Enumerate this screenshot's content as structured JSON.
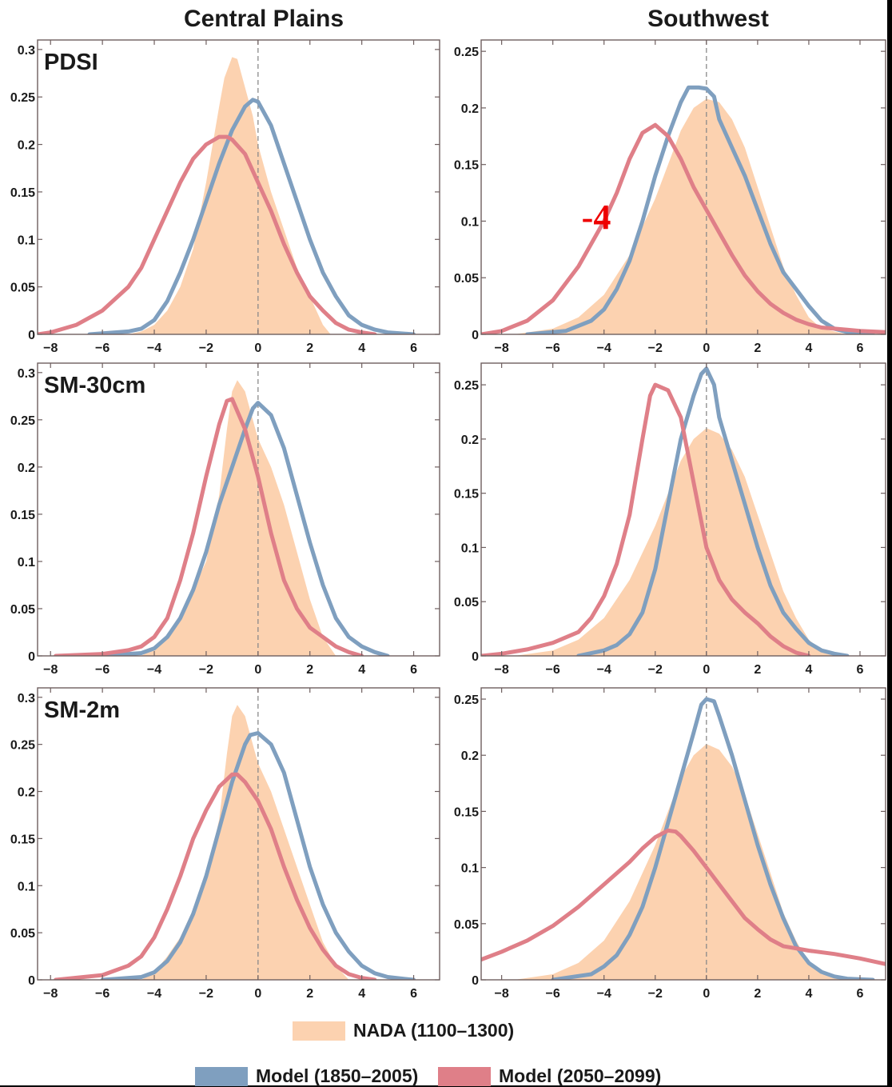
{
  "figure": {
    "column_titles": [
      "Central Plains",
      "Southwest"
    ],
    "row_labels": [
      "PDSI",
      "SM-30cm",
      "SM-2m"
    ],
    "overlay_text": "-4",
    "colors": {
      "nada_fill": "#fcd2b0",
      "model_hist": "#7f9fbf",
      "model_future": "#df7f88",
      "overlay": "#ee0000",
      "axis": "#6e5f5f",
      "zero_line": "#8a8a8a"
    },
    "legend": {
      "nada": "NADA (1100–1300)",
      "hist": "Model (1850–2005)",
      "future": "Model (2050–2099)"
    }
  },
  "chart_data": [
    {
      "type": "area",
      "panel": "Central Plains",
      "row_label": "PDSI",
      "xlim": [
        -8.5,
        7
      ],
      "ylim": [
        0,
        0.31
      ],
      "xticks": [
        -8,
        -6,
        -4,
        -2,
        0,
        2,
        4,
        6
      ],
      "yticks": [
        0,
        0.05,
        0.1,
        0.15,
        0.2,
        0.25,
        0.3
      ],
      "ytick_labels": [
        "0",
        "0.05",
        "0.1",
        "0.15",
        "0.2",
        "0.25",
        "0.3"
      ],
      "nada": {
        "x": [
          -5.0,
          -4.5,
          -4,
          -3.5,
          -3,
          -2.5,
          -2,
          -1.5,
          -1.3,
          -1,
          -0.8,
          -0.5,
          -0.2,
          0,
          0.5,
          1,
          1.5,
          2,
          2.5,
          2.8
        ],
        "y": [
          0,
          0.003,
          0.01,
          0.025,
          0.05,
          0.09,
          0.16,
          0.24,
          0.27,
          0.292,
          0.29,
          0.26,
          0.23,
          0.2,
          0.15,
          0.11,
          0.07,
          0.04,
          0.01,
          0
        ]
      },
      "series": [
        {
          "name": "Model (1850–2005)",
          "x": [
            -6.5,
            -5,
            -4.5,
            -4,
            -3.5,
            -3,
            -2.5,
            -2,
            -1.5,
            -1,
            -0.5,
            -0.2,
            0,
            0.5,
            1,
            1.5,
            2,
            2.5,
            3,
            3.5,
            4,
            4.5,
            5,
            6
          ],
          "y": [
            0,
            0.003,
            0.006,
            0.015,
            0.035,
            0.065,
            0.1,
            0.14,
            0.18,
            0.215,
            0.24,
            0.247,
            0.245,
            0.22,
            0.18,
            0.14,
            0.1,
            0.065,
            0.04,
            0.02,
            0.01,
            0.005,
            0.002,
            0
          ]
        },
        {
          "name": "Model (2050–2099)",
          "x": [
            -8.5,
            -8,
            -7,
            -6,
            -5,
            -4.5,
            -4,
            -3.5,
            -3,
            -2.5,
            -2,
            -1.5,
            -1.2,
            -1,
            -0.5,
            0,
            0.5,
            1,
            1.5,
            2,
            2.5,
            3,
            3.5,
            4,
            4.5
          ],
          "y": [
            0,
            0.002,
            0.01,
            0.025,
            0.05,
            0.07,
            0.1,
            0.13,
            0.16,
            0.185,
            0.2,
            0.208,
            0.208,
            0.205,
            0.19,
            0.16,
            0.13,
            0.095,
            0.065,
            0.04,
            0.025,
            0.012,
            0.005,
            0.002,
            0
          ]
        }
      ]
    },
    {
      "type": "area",
      "panel": "Southwest",
      "row_label": "",
      "xlim": [
        -8.8,
        7
      ],
      "ylim": [
        0,
        0.26
      ],
      "xticks": [
        -8,
        -6,
        -4,
        -2,
        0,
        2,
        4,
        6
      ],
      "yticks": [
        0,
        0.05,
        0.1,
        0.15,
        0.2,
        0.25
      ],
      "ytick_labels": [
        "0",
        "0.05",
        "0.1",
        "0.15",
        "0.2",
        "0.25"
      ],
      "nada": {
        "x": [
          -7.5,
          -6,
          -5,
          -4,
          -3,
          -2,
          -1.5,
          -1,
          -0.5,
          0,
          0.5,
          1,
          1.5,
          2,
          2.5,
          3,
          3.5,
          4,
          4.5,
          5.5
        ],
        "y": [
          0,
          0.005,
          0.015,
          0.035,
          0.07,
          0.12,
          0.15,
          0.18,
          0.2,
          0.208,
          0.205,
          0.19,
          0.165,
          0.13,
          0.095,
          0.06,
          0.035,
          0.015,
          0.005,
          0
        ]
      },
      "series": [
        {
          "name": "Model (1850–2005)",
          "x": [
            -7,
            -5.5,
            -4.5,
            -4,
            -3.5,
            -3,
            -2.5,
            -2,
            -1.5,
            -1,
            -0.7,
            -0.3,
            0,
            0.3,
            0.5,
            1,
            1.5,
            2,
            2.5,
            3,
            3.5,
            4,
            4.5,
            5,
            5.5,
            6.5
          ],
          "y": [
            0,
            0.003,
            0.012,
            0.022,
            0.04,
            0.065,
            0.1,
            0.14,
            0.175,
            0.205,
            0.218,
            0.218,
            0.217,
            0.21,
            0.19,
            0.165,
            0.14,
            0.11,
            0.08,
            0.055,
            0.04,
            0.025,
            0.012,
            0.005,
            0.002,
            0
          ]
        },
        {
          "name": "Model (2050–2099)",
          "x": [
            -8.8,
            -8,
            -7,
            -6,
            -5,
            -4,
            -3.5,
            -3,
            -2.5,
            -2,
            -1.5,
            -1,
            -0.5,
            0,
            0.5,
            1,
            1.5,
            2,
            2.5,
            3,
            3.5,
            4,
            4.5,
            5,
            5.5,
            6,
            7
          ],
          "y": [
            0,
            0.003,
            0.012,
            0.03,
            0.06,
            0.1,
            0.125,
            0.155,
            0.178,
            0.185,
            0.175,
            0.155,
            0.13,
            0.11,
            0.09,
            0.07,
            0.052,
            0.038,
            0.027,
            0.019,
            0.013,
            0.009,
            0.006,
            0.005,
            0.004,
            0.003,
            0.002
          ]
        }
      ]
    },
    {
      "type": "area",
      "panel": "Central Plains",
      "row_label": "SM-30cm",
      "xlim": [
        -8.5,
        7
      ],
      "ylim": [
        0,
        0.31
      ],
      "xticks": [
        -8,
        -6,
        -4,
        -2,
        0,
        2,
        4,
        6
      ],
      "yticks": [
        0,
        0.05,
        0.1,
        0.15,
        0.2,
        0.25,
        0.3
      ],
      "ytick_labels": [
        "0",
        "0.05",
        "0.1",
        "0.15",
        "0.2",
        "0.25",
        "0.3"
      ],
      "nada": {
        "x": [
          -4.5,
          -4,
          -3.5,
          -3,
          -2.5,
          -2,
          -1.5,
          -1.2,
          -1,
          -0.8,
          -0.5,
          -0.2,
          0,
          0.5,
          1,
          1.5,
          2,
          2.5,
          3
        ],
        "y": [
          0,
          0.008,
          0.02,
          0.04,
          0.07,
          0.1,
          0.17,
          0.24,
          0.28,
          0.292,
          0.28,
          0.25,
          0.23,
          0.2,
          0.16,
          0.11,
          0.06,
          0.02,
          0
        ]
      },
      "series": [
        {
          "name": "Model (1850–2005)",
          "x": [
            -6,
            -4.5,
            -4,
            -3.5,
            -3,
            -2.5,
            -2,
            -1.5,
            -1,
            -0.5,
            -0.2,
            0,
            0.5,
            1,
            1.5,
            2,
            2.5,
            3,
            3.5,
            4,
            4.5,
            5
          ],
          "y": [
            0,
            0.003,
            0.008,
            0.02,
            0.04,
            0.07,
            0.11,
            0.16,
            0.2,
            0.24,
            0.262,
            0.268,
            0.255,
            0.22,
            0.17,
            0.12,
            0.075,
            0.04,
            0.02,
            0.01,
            0.004,
            0
          ]
        },
        {
          "name": "Model (2050–2099)",
          "x": [
            -7.8,
            -6,
            -5,
            -4.5,
            -4,
            -3.5,
            -3,
            -2.5,
            -2,
            -1.5,
            -1.2,
            -1,
            -0.5,
            0,
            0.5,
            1,
            1.5,
            2,
            2.5,
            3,
            3.5,
            4
          ],
          "y": [
            0,
            0.002,
            0.006,
            0.01,
            0.02,
            0.04,
            0.08,
            0.13,
            0.19,
            0.245,
            0.27,
            0.272,
            0.24,
            0.19,
            0.13,
            0.08,
            0.05,
            0.03,
            0.02,
            0.01,
            0.004,
            0
          ]
        }
      ]
    },
    {
      "type": "area",
      "panel": "Southwest",
      "row_label": "",
      "xlim": [
        -8.8,
        7
      ],
      "ylim": [
        0,
        0.27
      ],
      "xticks": [
        -8,
        -6,
        -4,
        -2,
        0,
        2,
        4,
        6
      ],
      "yticks": [
        0,
        0.05,
        0.1,
        0.15,
        0.2,
        0.25
      ],
      "ytick_labels": [
        "0",
        "0.05",
        "0.1",
        "0.15",
        "0.2",
        "0.25"
      ],
      "nada": {
        "x": [
          -7.5,
          -6,
          -5,
          -4,
          -3,
          -2,
          -1.5,
          -1,
          -0.5,
          0,
          0.5,
          1,
          1.5,
          2,
          2.5,
          3,
          3.5,
          4,
          4.5,
          5.5
        ],
        "y": [
          0,
          0.005,
          0.015,
          0.035,
          0.07,
          0.12,
          0.15,
          0.18,
          0.2,
          0.21,
          0.205,
          0.19,
          0.165,
          0.13,
          0.095,
          0.06,
          0.035,
          0.015,
          0.005,
          0
        ]
      },
      "series": [
        {
          "name": "Model (1850–2005)",
          "x": [
            -5,
            -4,
            -3.5,
            -3,
            -2.5,
            -2,
            -1.5,
            -1,
            -0.5,
            -0.2,
            0,
            0.3,
            0.5,
            1,
            1.5,
            2,
            2.5,
            3,
            3.5,
            4,
            4.5,
            5,
            5.5
          ],
          "y": [
            0,
            0.005,
            0.01,
            0.02,
            0.04,
            0.08,
            0.14,
            0.2,
            0.24,
            0.26,
            0.265,
            0.25,
            0.22,
            0.18,
            0.14,
            0.1,
            0.065,
            0.04,
            0.025,
            0.012,
            0.005,
            0.002,
            0
          ]
        },
        {
          "name": "Model (2050–2099)",
          "x": [
            -8.8,
            -8,
            -7,
            -6,
            -5,
            -4.5,
            -4,
            -3.5,
            -3,
            -2.5,
            -2.2,
            -2,
            -1.5,
            -1,
            -0.5,
            0,
            0.5,
            1,
            1.5,
            2,
            2.5,
            3,
            3.5,
            4
          ],
          "y": [
            0,
            0.002,
            0.006,
            0.012,
            0.022,
            0.035,
            0.055,
            0.085,
            0.13,
            0.2,
            0.24,
            0.25,
            0.245,
            0.22,
            0.16,
            0.1,
            0.07,
            0.052,
            0.04,
            0.03,
            0.018,
            0.009,
            0.003,
            0
          ]
        }
      ]
    },
    {
      "type": "area",
      "panel": "Central Plains",
      "row_label": "SM-2m",
      "xlim": [
        -8.5,
        7
      ],
      "ylim": [
        0,
        0.31
      ],
      "xticks": [
        -8,
        -6,
        -4,
        -2,
        0,
        2,
        4,
        6
      ],
      "yticks": [
        0,
        0.05,
        0.1,
        0.15,
        0.2,
        0.25,
        0.3
      ],
      "ytick_labels": [
        "0",
        "0.05",
        "0.1",
        "0.15",
        "0.2",
        "0.25",
        "0.3"
      ],
      "nada": {
        "x": [
          -4.5,
          -4,
          -3.5,
          -3,
          -2.5,
          -2,
          -1.5,
          -1.2,
          -1,
          -0.8,
          -0.5,
          -0.2,
          0,
          0.5,
          1,
          1.5,
          2,
          2.5,
          3,
          3.5
        ],
        "y": [
          0,
          0.008,
          0.025,
          0.045,
          0.075,
          0.11,
          0.17,
          0.24,
          0.28,
          0.292,
          0.28,
          0.25,
          0.23,
          0.2,
          0.16,
          0.12,
          0.08,
          0.04,
          0.015,
          0
        ]
      },
      "series": [
        {
          "name": "Model (1850–2005)",
          "x": [
            -6,
            -4.5,
            -4,
            -3.5,
            -3,
            -2.5,
            -2,
            -1.5,
            -1,
            -0.5,
            -0.3,
            0,
            0.5,
            1,
            1.5,
            2,
            2.5,
            3,
            3.5,
            4,
            4.5,
            5,
            6
          ],
          "y": [
            0,
            0.003,
            0.008,
            0.02,
            0.04,
            0.07,
            0.11,
            0.16,
            0.21,
            0.25,
            0.26,
            0.262,
            0.25,
            0.22,
            0.17,
            0.12,
            0.08,
            0.05,
            0.03,
            0.015,
            0.007,
            0.003,
            0
          ]
        },
        {
          "name": "Model (2050–2099)",
          "x": [
            -7.8,
            -6,
            -5,
            -4.5,
            -4,
            -3.5,
            -3,
            -2.5,
            -2,
            -1.5,
            -1,
            -0.8,
            -0.5,
            0,
            0.5,
            1,
            1.5,
            2,
            2.5,
            3,
            3.5,
            4,
            4.5
          ],
          "y": [
            0,
            0.005,
            0.015,
            0.025,
            0.045,
            0.075,
            0.11,
            0.15,
            0.18,
            0.205,
            0.218,
            0.218,
            0.21,
            0.19,
            0.16,
            0.12,
            0.085,
            0.055,
            0.032,
            0.015,
            0.006,
            0.002,
            0
          ]
        }
      ]
    },
    {
      "type": "area",
      "panel": "Southwest",
      "row_label": "",
      "xlim": [
        -8.8,
        7
      ],
      "ylim": [
        0,
        0.26
      ],
      "xticks": [
        -8,
        -6,
        -4,
        -2,
        0,
        2,
        4,
        6
      ],
      "yticks": [
        0,
        0.05,
        0.1,
        0.15,
        0.2,
        0.25
      ],
      "ytick_labels": [
        "0",
        "0.05",
        "0.1",
        "0.15",
        "0.2",
        "0.25"
      ],
      "nada": {
        "x": [
          -7.5,
          -6,
          -5,
          -4,
          -3,
          -2,
          -1.5,
          -1,
          -0.5,
          0,
          0.5,
          1,
          1.5,
          2,
          2.5,
          3,
          3.5,
          4,
          4.5,
          5.5
        ],
        "y": [
          0,
          0.005,
          0.015,
          0.035,
          0.07,
          0.12,
          0.15,
          0.18,
          0.2,
          0.21,
          0.205,
          0.19,
          0.165,
          0.13,
          0.095,
          0.06,
          0.035,
          0.015,
          0.005,
          0
        ]
      },
      "series": [
        {
          "name": "Model (1850–2005)",
          "x": [
            -6,
            -4.5,
            -4,
            -3.5,
            -3,
            -2.5,
            -2,
            -1.5,
            -1,
            -0.5,
            -0.2,
            0,
            0.3,
            0.5,
            1,
            1.5,
            2,
            2.5,
            3,
            3.5,
            4,
            4.5,
            5,
            5.5,
            6.5
          ],
          "y": [
            0,
            0.005,
            0.012,
            0.022,
            0.04,
            0.065,
            0.1,
            0.14,
            0.18,
            0.22,
            0.245,
            0.25,
            0.248,
            0.235,
            0.2,
            0.16,
            0.12,
            0.085,
            0.055,
            0.03,
            0.015,
            0.007,
            0.003,
            0.001,
            0
          ]
        },
        {
          "name": "Model (2050–2099)",
          "x": [
            -8.8,
            -8,
            -7,
            -6,
            -5,
            -4,
            -3,
            -2.5,
            -2,
            -1.5,
            -1.2,
            -1,
            -0.5,
            0,
            0.5,
            1,
            1.5,
            2,
            2.5,
            3,
            3.5,
            4,
            5,
            6,
            7
          ],
          "y": [
            0.018,
            0.025,
            0.035,
            0.048,
            0.065,
            0.085,
            0.105,
            0.117,
            0.127,
            0.133,
            0.132,
            0.128,
            0.115,
            0.1,
            0.085,
            0.07,
            0.055,
            0.045,
            0.036,
            0.03,
            0.028,
            0.026,
            0.023,
            0.019,
            0.014
          ]
        }
      ]
    }
  ]
}
